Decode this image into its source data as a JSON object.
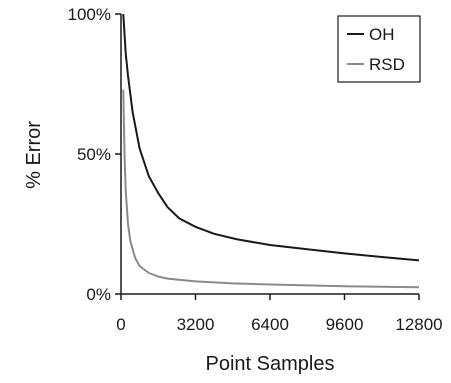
{
  "chart_data": {
    "type": "line",
    "title": "",
    "xlabel": "Point Samples",
    "ylabel": "% Error",
    "xlim": [
      0,
      12800
    ],
    "ylim": [
      0,
      100
    ],
    "x_ticks": [
      0,
      3200,
      6400,
      9600,
      12800
    ],
    "x_tick_labels": [
      "0",
      "3200",
      "6400",
      "9600",
      "12800"
    ],
    "y_ticks": [
      0,
      50,
      100
    ],
    "y_tick_labels": [
      "0%",
      "50%",
      "100%"
    ],
    "grid": false,
    "legend_position": "top-right",
    "series": [
      {
        "name": "OH",
        "color": "#1a1a1a",
        "x": [
          100,
          200,
          300,
          500,
          800,
          1200,
          1600,
          2000,
          2500,
          3200,
          4000,
          5000,
          6400,
          8000,
          9600,
          11200,
          12800
        ],
        "y": [
          100,
          86,
          78,
          65,
          52,
          42,
          36,
          31,
          27,
          24,
          21.5,
          19.5,
          17.5,
          16,
          14.5,
          13.2,
          12
        ]
      },
      {
        "name": "RSD",
        "color": "#8a8a8a",
        "x": [
          100,
          150,
          200,
          300,
          400,
          600,
          800,
          1200,
          1600,
          2000,
          3200,
          4800,
          6400,
          9600,
          12800
        ],
        "y": [
          73,
          50,
          37,
          25,
          19,
          13,
          10,
          7.5,
          6.2,
          5.5,
          4.5,
          3.8,
          3.4,
          2.8,
          2.4
        ]
      }
    ]
  }
}
